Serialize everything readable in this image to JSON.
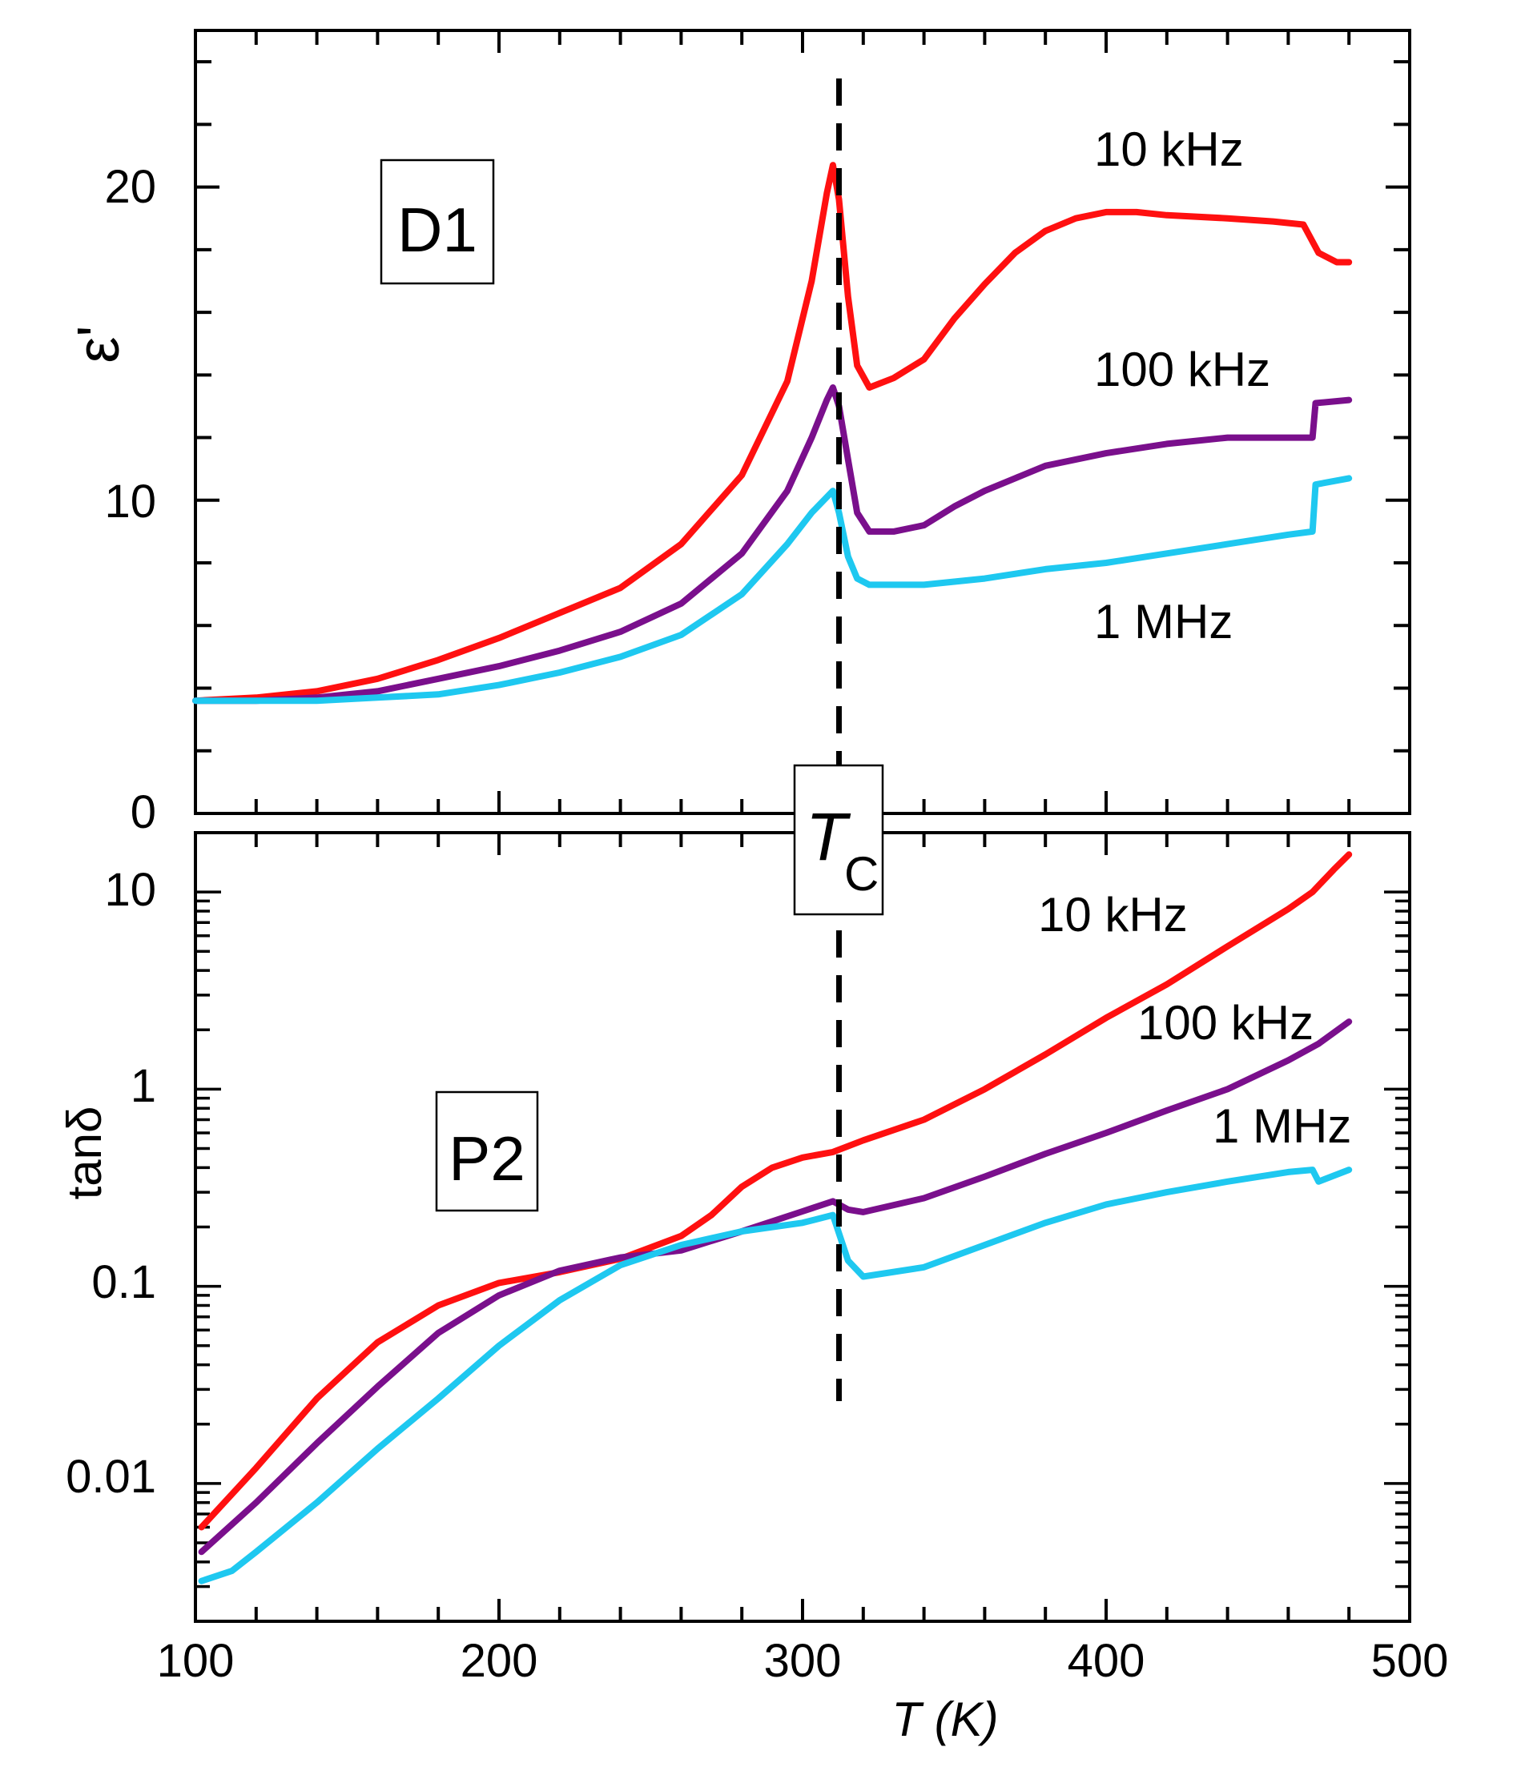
{
  "chart_data": [
    {
      "type": "line",
      "panel": "top",
      "panel_label": "D1",
      "ylabel": "ε'",
      "xlabel": "",
      "xlim": [
        100,
        500
      ],
      "ylim": [
        0,
        25
      ],
      "yticks": [
        0,
        10,
        20
      ],
      "ytick_labels": [
        "0",
        "10",
        "20"
      ],
      "series": [
        {
          "name": "10 kHz",
          "color": "#ff1010",
          "points": [
            [
              100,
              3.6
            ],
            [
              120,
              3.7
            ],
            [
              140,
              3.9
            ],
            [
              160,
              4.3
            ],
            [
              180,
              4.9
            ],
            [
              200,
              5.6
            ],
            [
              220,
              6.4
            ],
            [
              240,
              7.2
            ],
            [
              260,
              8.6
            ],
            [
              280,
              10.8
            ],
            [
              295,
              13.8
            ],
            [
              303,
              17.0
            ],
            [
              308,
              19.8
            ],
            [
              310,
              20.7
            ],
            [
              312,
              19.6
            ],
            [
              315,
              16.5
            ],
            [
              318,
              14.3
            ],
            [
              322,
              13.6
            ],
            [
              330,
              13.9
            ],
            [
              340,
              14.5
            ],
            [
              350,
              15.8
            ],
            [
              360,
              16.9
            ],
            [
              370,
              17.9
            ],
            [
              380,
              18.6
            ],
            [
              390,
              19.0
            ],
            [
              400,
              19.2
            ],
            [
              410,
              19.2
            ],
            [
              420,
              19.1
            ],
            [
              440,
              19.0
            ],
            [
              455,
              18.9
            ],
            [
              465,
              18.8
            ],
            [
              470,
              17.9
            ],
            [
              476,
              17.6
            ],
            [
              480,
              17.6
            ]
          ]
        },
        {
          "name": "100 kHz",
          "color": "#7a0f8c",
          "points": [
            [
              100,
              3.6
            ],
            [
              120,
              3.6
            ],
            [
              140,
              3.7
            ],
            [
              160,
              3.9
            ],
            [
              180,
              4.3
            ],
            [
              200,
              4.7
            ],
            [
              220,
              5.2
            ],
            [
              240,
              5.8
            ],
            [
              260,
              6.7
            ],
            [
              280,
              8.3
            ],
            [
              295,
              10.3
            ],
            [
              303,
              12.0
            ],
            [
              308,
              13.2
            ],
            [
              310,
              13.6
            ],
            [
              312,
              13.0
            ],
            [
              315,
              11.3
            ],
            [
              318,
              9.6
            ],
            [
              322,
              9.0
            ],
            [
              330,
              9.0
            ],
            [
              340,
              9.2
            ],
            [
              350,
              9.8
            ],
            [
              360,
              10.3
            ],
            [
              370,
              10.7
            ],
            [
              380,
              11.1
            ],
            [
              400,
              11.5
            ],
            [
              420,
              11.8
            ],
            [
              440,
              12.0
            ],
            [
              460,
              12.0
            ],
            [
              468,
              12.0
            ],
            [
              469,
              13.1
            ],
            [
              480,
              13.2
            ]
          ]
        },
        {
          "name": "1 MHz",
          "color": "#1ec8f0",
          "points": [
            [
              100,
              3.6
            ],
            [
              120,
              3.6
            ],
            [
              140,
              3.6
            ],
            [
              160,
              3.7
            ],
            [
              180,
              3.8
            ],
            [
              200,
              4.1
            ],
            [
              220,
              4.5
            ],
            [
              240,
              5.0
            ],
            [
              260,
              5.7
            ],
            [
              280,
              7.0
            ],
            [
              295,
              8.6
            ],
            [
              303,
              9.6
            ],
            [
              308,
              10.1
            ],
            [
              310,
              10.3
            ],
            [
              312,
              9.6
            ],
            [
              315,
              8.2
            ],
            [
              318,
              7.5
            ],
            [
              322,
              7.3
            ],
            [
              340,
              7.3
            ],
            [
              360,
              7.5
            ],
            [
              380,
              7.8
            ],
            [
              400,
              8.0
            ],
            [
              420,
              8.3
            ],
            [
              440,
              8.6
            ],
            [
              460,
              8.9
            ],
            [
              468,
              9.0
            ],
            [
              469,
              10.5
            ],
            [
              480,
              10.7
            ]
          ]
        }
      ],
      "annotations": [
        "10 kHz",
        "100 kHz",
        "1 MHz"
      ]
    },
    {
      "type": "line",
      "panel": "bottom",
      "panel_label": "P2",
      "ylabel": "tanδ",
      "xlabel": "T (K)",
      "xlim": [
        100,
        500
      ],
      "ylim": [
        0.002,
        20
      ],
      "yscale": "log",
      "xticks": [
        100,
        200,
        300,
        400,
        500
      ],
      "xtick_labels": [
        "100",
        "200",
        "300",
        "400",
        "500"
      ],
      "yticks": [
        0.01,
        0.1,
        1,
        10
      ],
      "ytick_labels": [
        "0.01",
        "0.1",
        "1",
        "10"
      ],
      "series": [
        {
          "name": "10 kHz",
          "color": "#ff1010",
          "points": [
            [
              102,
              0.006
            ],
            [
              120,
              0.012
            ],
            [
              140,
              0.027
            ],
            [
              160,
              0.052
            ],
            [
              180,
              0.08
            ],
            [
              200,
              0.104
            ],
            [
              220,
              0.118
            ],
            [
              240,
              0.138
            ],
            [
              260,
              0.18
            ],
            [
              270,
              0.23
            ],
            [
              280,
              0.32
            ],
            [
              290,
              0.4
            ],
            [
              300,
              0.45
            ],
            [
              310,
              0.48
            ],
            [
              320,
              0.55
            ],
            [
              340,
              0.7
            ],
            [
              360,
              1.0
            ],
            [
              380,
              1.5
            ],
            [
              400,
              2.3
            ],
            [
              420,
              3.4
            ],
            [
              440,
              5.3
            ],
            [
              460,
              8.2
            ],
            [
              468,
              10.0
            ],
            [
              475,
              13.0
            ],
            [
              480,
              15.5
            ]
          ]
        },
        {
          "name": "100 kHz",
          "color": "#7a0f8c",
          "points": [
            [
              102,
              0.0045
            ],
            [
              120,
              0.008
            ],
            [
              140,
              0.016
            ],
            [
              160,
              0.031
            ],
            [
              180,
              0.058
            ],
            [
              200,
              0.09
            ],
            [
              220,
              0.12
            ],
            [
              240,
              0.14
            ],
            [
              260,
              0.152
            ],
            [
              280,
              0.19
            ],
            [
              300,
              0.24
            ],
            [
              310,
              0.27
            ],
            [
              315,
              0.245
            ],
            [
              320,
              0.238
            ],
            [
              340,
              0.28
            ],
            [
              360,
              0.36
            ],
            [
              380,
              0.47
            ],
            [
              400,
              0.6
            ],
            [
              420,
              0.78
            ],
            [
              440,
              1.0
            ],
            [
              460,
              1.4
            ],
            [
              470,
              1.7
            ],
            [
              480,
              2.2
            ]
          ]
        },
        {
          "name": "1 MHz",
          "color": "#1ec8f0",
          "points": [
            [
              102,
              0.0032
            ],
            [
              112,
              0.0036
            ],
            [
              120,
              0.0045
            ],
            [
              140,
              0.008
            ],
            [
              160,
              0.015
            ],
            [
              180,
              0.027
            ],
            [
              200,
              0.05
            ],
            [
              220,
              0.085
            ],
            [
              240,
              0.128
            ],
            [
              260,
              0.162
            ],
            [
              280,
              0.19
            ],
            [
              300,
              0.21
            ],
            [
              310,
              0.23
            ],
            [
              315,
              0.135
            ],
            [
              320,
              0.112
            ],
            [
              340,
              0.125
            ],
            [
              360,
              0.162
            ],
            [
              380,
              0.21
            ],
            [
              400,
              0.26
            ],
            [
              420,
              0.3
            ],
            [
              440,
              0.34
            ],
            [
              460,
              0.38
            ],
            [
              468,
              0.39
            ],
            [
              470,
              0.34
            ],
            [
              480,
              0.39
            ]
          ]
        }
      ],
      "annotations": [
        "10 kHz",
        "100 kHz",
        "1 MHz"
      ]
    }
  ],
  "tc_marker": {
    "x": 312,
    "label_main": "T",
    "label_sub": "C"
  },
  "colors": {
    "red": "#ff1010",
    "purple": "#7a0f8c",
    "cyan": "#1ec8f0"
  }
}
